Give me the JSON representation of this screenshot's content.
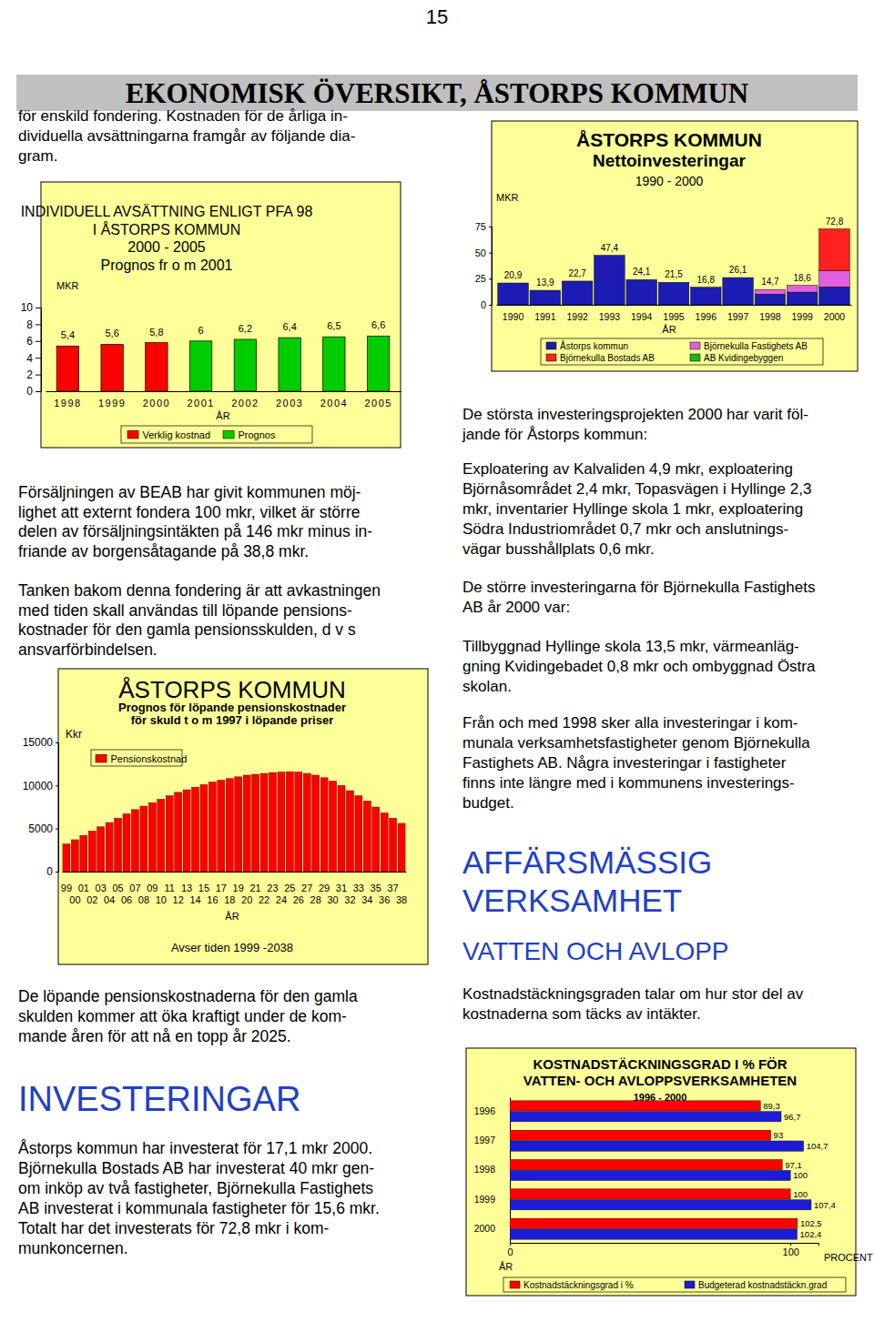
{
  "page": {
    "number": "15",
    "header": "EKONOMISK ÖVERSIKT, ÅSTORPS KOMMUN",
    "intro": [
      "för enskild fondering. Kostnaden för de årliga in-",
      "dividuella avsättningarna framgår av följande dia-",
      "gram."
    ],
    "sale_paragraph": [
      "Försäljningen av BEAB har givit kommunen möj-",
      "lighet att externt fondera 100 mkr, vilket är större",
      "delen av försäljningsintäkten på 146 mkr minus in-",
      "friande av borgensåtagande på 38,8 mkr."
    ],
    "fund_paragraph": [
      "Tanken bakom denna fondering är att avkastningen",
      "med tiden skall användas till löpande pensions-",
      "kostnader för den gamla pensionsskulden, d v s",
      "ansvarförbindelsen."
    ],
    "pension_paragraph": [
      "De löpande pensionskostnaderna för den gamla",
      "skulden kommer att öka kraftigt under de kom-",
      "mande åren för att nå en topp år 2025."
    ],
    "investments_heading": "INVESTERINGAR",
    "investments_paragraph": [
      "Åstorps kommun har investerat för 17,1 mkr 2000.",
      "Björnekulla Bostads AB har investerat 40 mkr gen-",
      "om inköp av två fastigheter, Björnekulla Fastighets",
      "AB investerat i kommunala fastigheter för 15,6 mkr.",
      "Totalt har det investerats för 72,8 mkr i kom-",
      "munkoncernen."
    ],
    "projects_intro": [
      "De största investeringsprojekten 2000 har varit föl-",
      "jande för Åstorps kommun:"
    ],
    "projects_paragraph": [
      "Exploatering av Kalvaliden 4,9 mkr, exploatering",
      "Björnåsområdet 2,4 mkr, Topasvägen i Hyllinge 2,3",
      "mkr, inventarier Hyllinge skola 1 mkr, exploatering",
      "Södra Industriområdet 0,7 mkr och anslutnings-",
      "vägar busshållplats 0,6 mkr."
    ],
    "bfab_intro": [
      "De större investeringarna för Björnekulla Fastighets",
      "AB år 2000 var:"
    ],
    "bfab_paragraph": [
      "Tillbyggnad Hyllinge skola 13,5 mkr, värmeanläg-",
      "gning Kvidingebadet 0,8 mkr och ombyggnad Östra",
      "skolan."
    ],
    "from_1998_paragraph": [
      "Från och med 1998 sker alla investeringar i kom-",
      "munala verksamhetsfastigheter genom Björnekulla",
      "Fastighets AB. Några investeringar i fastigheter",
      "finns inte längre med i kommunens investerings-",
      "budget."
    ],
    "business_heading": [
      "AFFÄRSMÄSSIG",
      "VERKSAMHET"
    ],
    "water_heading": "VATTEN OCH AVLOPP",
    "coverage_paragraph": [
      "Kostnadstäckningsgraden talar om hur stor del av",
      "kostnaderna som täcks av intäkter."
    ]
  },
  "chart_data": [
    {
      "type": "bar",
      "title": [
        "INDIVIDUELL AVSÄTTNING ENLIGT PFA 98",
        "I ÅSTORPS KOMMUN",
        "2000 - 2005",
        "Prognos fr o m 2001"
      ],
      "y_label": "MKR",
      "x_label": "ÅR",
      "categories": [
        "1998",
        "1999",
        "2000",
        "2001",
        "2002",
        "2003",
        "2004",
        "2005"
      ],
      "series": [
        {
          "name": "Verklig kostnad",
          "color": "#ff0000",
          "values": [
            5.4,
            5.6,
            5.8,
            null,
            null,
            null,
            null,
            null
          ],
          "value_labels": [
            "5,4",
            "5,6",
            "5,8",
            null,
            null,
            null,
            null,
            null
          ]
        },
        {
          "name": "Prognos",
          "color": "#00cc00",
          "values": [
            null,
            null,
            null,
            6,
            6.2,
            6.4,
            6.5,
            6.6
          ],
          "value_labels": [
            null,
            null,
            null,
            "6",
            "6,2",
            "6,4",
            "6,5",
            "6,6"
          ]
        }
      ],
      "ylim": [
        0,
        10
      ],
      "yticks": [
        0,
        2,
        4,
        6,
        8,
        10
      ],
      "data_labels": true,
      "legend": "bottom"
    },
    {
      "type": "bar",
      "title": [
        "ÅSTORPS KOMMUN",
        "Prognos för löpande pensionskostnader",
        "för skuld t o m 1997 i löpande priser"
      ],
      "y_label": "Kkr",
      "x_label": "ÅR",
      "annotation": "Avser tiden 1999 -2038",
      "categories": [
        "99",
        "00",
        "01",
        "02",
        "03",
        "04",
        "05",
        "06",
        "07",
        "08",
        "09",
        "10",
        "11",
        "12",
        "13",
        "14",
        "15",
        "16",
        "17",
        "18",
        "19",
        "20",
        "21",
        "22",
        "23",
        "24",
        "25",
        "26",
        "27",
        "28",
        "29",
        "30",
        "31",
        "32",
        "33",
        "34",
        "35",
        "36",
        "37",
        "38"
      ],
      "series": [
        {
          "name": "Pensionskostnad",
          "color": "#ff0000",
          "values": [
            3200,
            3700,
            4200,
            4700,
            5200,
            5700,
            6200,
            6700,
            7200,
            7600,
            8000,
            8400,
            8800,
            9200,
            9500,
            9800,
            10100,
            10400,
            10600,
            10800,
            11000,
            11200,
            11300,
            11400,
            11500,
            11550,
            11600,
            11550,
            11400,
            11200,
            10900,
            10500,
            10000,
            9400,
            8800,
            8200,
            7500,
            6800,
            6200,
            5600
          ]
        }
      ],
      "ylim": [
        0,
        15000
      ],
      "yticks": [
        0,
        5000,
        10000,
        15000
      ],
      "legend": "top-left"
    },
    {
      "type": "bar",
      "stacked": true,
      "title": [
        "ÅSTORPS KOMMUN",
        "Nettoinvesteringar",
        "1990 - 2000"
      ],
      "y_label": "MKR",
      "x_label": "ÅR",
      "categories": [
        "1990",
        "1991",
        "1992",
        "1993",
        "1994",
        "1995",
        "1996",
        "1997",
        "1998",
        "1999",
        "2000"
      ],
      "series": [
        {
          "name": "Åstorps kommun",
          "color": "#1c1cb4",
          "values": [
            20.9,
            13.9,
            22.7,
            47.4,
            24.1,
            21.5,
            16.8,
            26.1,
            10.2,
            12.1,
            17.1
          ]
        },
        {
          "name": "Björnekulla Fastighets AB",
          "color": "#e060e0",
          "values": [
            null,
            null,
            null,
            null,
            null,
            null,
            null,
            null,
            4.5,
            6.5,
            15.6
          ]
        },
        {
          "name": "Björnekulla Bostads AB",
          "color": "#ff2020",
          "values": [
            null,
            null,
            null,
            null,
            null,
            null,
            null,
            null,
            null,
            null,
            40
          ]
        },
        {
          "name": "AB Kvidingebyggen",
          "color": "#20b020",
          "values": [
            null,
            null,
            null,
            null,
            null,
            null,
            null,
            null,
            null,
            null,
            null
          ]
        }
      ],
      "totals": [
        20.9,
        13.9,
        22.7,
        47.4,
        24.1,
        21.5,
        16.8,
        26.1,
        14.7,
        18.6,
        72.8
      ],
      "total_labels": [
        "20,9",
        "13,9",
        "22,7",
        "47,4",
        "24,1",
        "21,5",
        "16,8",
        "26,1",
        "14,7",
        "18,6",
        "72,8"
      ],
      "ylim": [
        0,
        75
      ],
      "yticks": [
        0,
        25,
        50,
        75
      ],
      "legend": "bottom"
    },
    {
      "type": "bar",
      "orientation": "horizontal",
      "title": [
        "KOSTNADSTÄCKNINGSGRAD I % FÖR",
        "VATTEN- OCH AVLOPPSVERKSAMHETEN",
        "1996 - 2000"
      ],
      "y_label": "ÅR",
      "x_label": "PROCENT",
      "categories": [
        "1996",
        "1997",
        "1998",
        "1999",
        "2000"
      ],
      "series": [
        {
          "name": "Kostnadstäckningsgrad i %",
          "color": "#ff0000",
          "values": [
            89.3,
            93,
            97.1,
            100,
            102.5
          ],
          "value_labels": [
            "89,3",
            "93",
            "97,1",
            "100",
            "102,5"
          ]
        },
        {
          "name": "Budgeterad kostnadstäckn.grad",
          "color": "#1c1cd8",
          "values": [
            96.7,
            104.7,
            100,
            107.4,
            102.4
          ],
          "value_labels": [
            "96,7",
            "104,7",
            "100",
            "107,4",
            "102,4"
          ]
        }
      ],
      "xlim": [
        0,
        110
      ],
      "xticks": [
        0,
        100
      ],
      "data_labels": true,
      "legend": "bottom"
    }
  ]
}
